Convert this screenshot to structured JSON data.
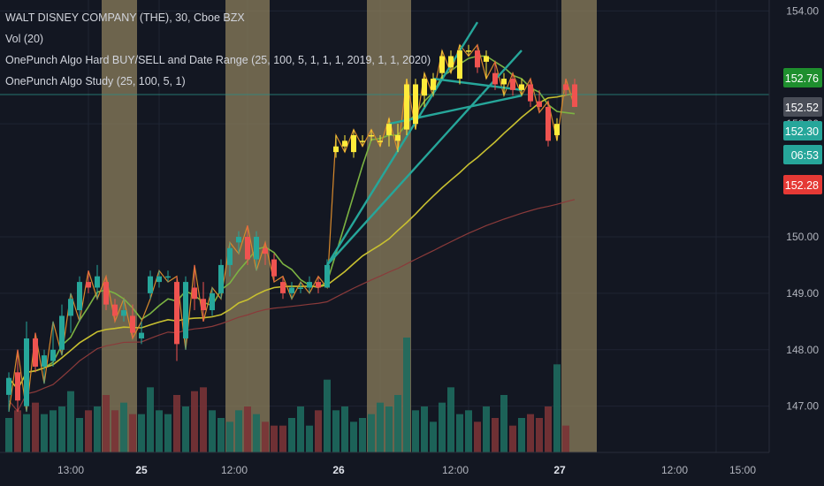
{
  "legend": {
    "title": "WALT DISNEY COMPANY (THE), 30, Cboe BZX",
    "vol": "Vol (20)",
    "study1": "OnePunch Algo Hard BUY/SELL and Date Range (25, 100, 5, 1, 1, 1, 2019, 1, 1, 2020)",
    "study2": "OnePunch Algo Study (25, 100, 5, 1)"
  },
  "colors": {
    "background": "#131722",
    "up": "#26a69a",
    "down": "#ef5350",
    "highlight_candle": "#ffeb3b",
    "shade": "#8c7f5c",
    "ma_fast": "#7cb342",
    "ma_slow": "#c8c030",
    "ma_long": "#8a3a3a",
    "zigzag": "#d7892c",
    "trendline": "#26a69a",
    "grid": "#1f2433",
    "axis_text": "#b2b5be"
  },
  "chart_data": {
    "type": "candlestick",
    "symbol": "WALT DISNEY COMPANY (THE)",
    "interval": "30",
    "exchange": "Cboe BZX",
    "ylim": [
      146.4,
      154.1
    ],
    "y_ticks": [
      "154.00",
      "152.00",
      "150.00",
      "149.00",
      "148.00",
      "147.00"
    ],
    "x_ticks": [
      "13:00",
      "25",
      "12:00",
      "26",
      "12:00",
      "27",
      "12:00",
      "15:00"
    ],
    "price_labels": [
      {
        "value": "152.76",
        "bg": "#1e8f2e",
        "fg": "#ffffff"
      },
      {
        "value": "152.52",
        "bg": "#4a4e58",
        "fg": "#ffffff"
      },
      {
        "value": "152.30",
        "bg": "#26a69a",
        "fg": "#ffffff"
      },
      {
        "value": "06:53",
        "bg": "#26a69a",
        "fg": "#ffffff"
      },
      {
        "value": "152.28",
        "bg": "#e53935",
        "fg": "#ffffff"
      }
    ],
    "horizontal_line": 152.52,
    "candles": [
      {
        "o": 147.2,
        "h": 147.6,
        "l": 146.9,
        "c": 147.5
      },
      {
        "o": 147.6,
        "h": 148.0,
        "l": 146.9,
        "c": 147.1
      },
      {
        "o": 147.0,
        "h": 148.5,
        "l": 146.9,
        "c": 148.2
      },
      {
        "o": 148.2,
        "h": 148.3,
        "l": 147.6,
        "c": 147.7
      },
      {
        "o": 147.7,
        "h": 148.0,
        "l": 147.4,
        "c": 147.9
      },
      {
        "o": 147.8,
        "h": 148.5,
        "l": 147.7,
        "c": 148.0
      },
      {
        "o": 148.0,
        "h": 148.8,
        "l": 147.9,
        "c": 148.6
      },
      {
        "o": 148.6,
        "h": 149.0,
        "l": 148.3,
        "c": 148.9
      },
      {
        "o": 148.7,
        "h": 149.3,
        "l": 148.5,
        "c": 149.2
      },
      {
        "o": 149.2,
        "h": 149.4,
        "l": 149.0,
        "c": 149.1
      },
      {
        "o": 149.1,
        "h": 149.5,
        "l": 148.9,
        "c": 149.3
      },
      {
        "o": 149.2,
        "h": 149.3,
        "l": 148.7,
        "c": 148.8
      },
      {
        "o": 148.8,
        "h": 148.9,
        "l": 148.5,
        "c": 148.6
      },
      {
        "o": 148.6,
        "h": 148.9,
        "l": 148.5,
        "c": 148.7
      },
      {
        "o": 148.6,
        "h": 148.8,
        "l": 148.2,
        "c": 148.3
      },
      {
        "o": 148.2,
        "h": 148.5,
        "l": 148.1,
        "c": 148.3
      },
      {
        "o": 149.0,
        "h": 149.4,
        "l": 148.9,
        "c": 149.3
      },
      {
        "o": 149.2,
        "h": 149.4,
        "l": 149.1,
        "c": 149.3
      },
      {
        "o": 149.3,
        "h": 149.4,
        "l": 149.2,
        "c": 149.3
      },
      {
        "o": 149.2,
        "h": 149.3,
        "l": 147.8,
        "c": 148.1
      },
      {
        "o": 148.2,
        "h": 149.3,
        "l": 148.0,
        "c": 149.2
      },
      {
        "o": 149.1,
        "h": 149.5,
        "l": 148.7,
        "c": 148.9
      },
      {
        "o": 148.9,
        "h": 149.2,
        "l": 148.5,
        "c": 148.7
      },
      {
        "o": 148.7,
        "h": 149.1,
        "l": 148.6,
        "c": 149.0
      },
      {
        "o": 149.0,
        "h": 149.6,
        "l": 148.9,
        "c": 149.5
      },
      {
        "o": 149.5,
        "h": 149.9,
        "l": 149.3,
        "c": 149.8
      },
      {
        "o": 149.9,
        "h": 150.1,
        "l": 149.7,
        "c": 150.0
      },
      {
        "o": 150.0,
        "h": 150.2,
        "l": 149.5,
        "c": 149.6
      },
      {
        "o": 149.6,
        "h": 150.1,
        "l": 149.4,
        "c": 150.0
      },
      {
        "o": 149.8,
        "h": 149.9,
        "l": 149.5,
        "c": 149.7
      },
      {
        "o": 149.6,
        "h": 149.7,
        "l": 149.2,
        "c": 149.3
      },
      {
        "o": 149.2,
        "h": 149.3,
        "l": 148.9,
        "c": 149.0
      },
      {
        "o": 149.0,
        "h": 149.2,
        "l": 148.9,
        "c": 149.1
      },
      {
        "o": 149.1,
        "h": 149.2,
        "l": 149.0,
        "c": 149.1
      },
      {
        "o": 149.1,
        "h": 149.3,
        "l": 149.0,
        "c": 149.2
      },
      {
        "o": 149.2,
        "h": 149.3,
        "l": 149.0,
        "c": 149.1
      },
      {
        "o": 149.1,
        "h": 149.6,
        "l": 149.1,
        "c": 149.5
      },
      {
        "o": 151.5,
        "h": 151.8,
        "l": 151.4,
        "c": 151.6,
        "hl": true
      },
      {
        "o": 151.6,
        "h": 151.8,
        "l": 151.5,
        "c": 151.7,
        "hl": true
      },
      {
        "o": 151.5,
        "h": 151.9,
        "l": 151.4,
        "c": 151.8,
        "hl": true
      },
      {
        "o": 151.7,
        "h": 151.8,
        "l": 151.6,
        "c": 151.7,
        "hl": true
      },
      {
        "o": 151.8,
        "h": 151.9,
        "l": 151.7,
        "c": 151.8,
        "hl": true
      },
      {
        "o": 151.7,
        "h": 151.8,
        "l": 151.6,
        "c": 151.7,
        "hl": true
      },
      {
        "o": 151.8,
        "h": 152.1,
        "l": 151.6,
        "c": 152.0,
        "hl": true
      },
      {
        "o": 151.7,
        "h": 152.0,
        "l": 151.5,
        "c": 151.8,
        "hl": true
      },
      {
        "o": 151.9,
        "h": 152.8,
        "l": 151.8,
        "c": 152.7,
        "hl": true
      },
      {
        "o": 152.0,
        "h": 152.8,
        "l": 151.9,
        "c": 152.7,
        "hl": true
      },
      {
        "o": 152.5,
        "h": 152.9,
        "l": 152.3,
        "c": 152.8,
        "hl": true
      },
      {
        "o": 152.6,
        "h": 152.9,
        "l": 152.5,
        "c": 152.8,
        "hl": true
      },
      {
        "o": 152.9,
        "h": 153.3,
        "l": 152.8,
        "c": 153.2,
        "hl": true
      },
      {
        "o": 153.0,
        "h": 153.3,
        "l": 152.9,
        "c": 153.2,
        "hl": true
      },
      {
        "o": 152.8,
        "h": 153.4,
        "l": 152.7,
        "c": 153.3,
        "hl": true
      },
      {
        "o": 153.3,
        "h": 153.4,
        "l": 153.2,
        "c": 153.3,
        "hl": true
      },
      {
        "o": 153.3,
        "h": 153.4,
        "l": 152.9,
        "c": 153.0
      },
      {
        "o": 153.1,
        "h": 153.3,
        "l": 152.8,
        "c": 153.2,
        "hl": true
      },
      {
        "o": 152.9,
        "h": 153.1,
        "l": 152.6,
        "c": 152.7
      },
      {
        "o": 152.7,
        "h": 152.9,
        "l": 152.5,
        "c": 152.8,
        "hl": true
      },
      {
        "o": 152.8,
        "h": 152.9,
        "l": 152.5,
        "c": 152.6
      },
      {
        "o": 152.6,
        "h": 152.8,
        "l": 152.5,
        "c": 152.7,
        "hl": true
      },
      {
        "o": 152.7,
        "h": 152.8,
        "l": 152.3,
        "c": 152.4
      },
      {
        "o": 152.4,
        "h": 152.6,
        "l": 152.2,
        "c": 152.3
      },
      {
        "o": 152.3,
        "h": 152.4,
        "l": 151.6,
        "c": 151.7
      },
      {
        "o": 151.8,
        "h": 152.1,
        "l": 151.7,
        "c": 152.0,
        "hl": true
      },
      {
        "o": 152.7,
        "h": 152.8,
        "l": 152.5,
        "c": 152.6
      },
      {
        "o": 152.7,
        "h": 152.8,
        "l": 152.3,
        "c": 152.3
      }
    ],
    "volume": [
      18,
      22,
      20,
      26,
      20,
      22,
      24,
      32,
      18,
      22,
      24,
      30,
      22,
      26,
      20,
      20,
      34,
      22,
      20,
      30,
      24,
      32,
      34,
      22,
      18,
      16,
      22,
      24,
      20,
      16,
      14,
      14,
      18,
      24,
      14,
      22,
      38,
      22,
      24,
      16,
      18,
      20,
      26,
      24,
      30,
      60,
      22,
      24,
      16,
      26,
      34,
      20,
      22,
      16,
      24,
      18,
      30,
      14,
      18,
      20,
      18,
      24,
      46,
      14
    ],
    "shaded_ranges": [
      [
        11,
        14
      ],
      [
        25,
        29
      ],
      [
        41,
        45
      ],
      [
        63,
        66
      ]
    ]
  }
}
